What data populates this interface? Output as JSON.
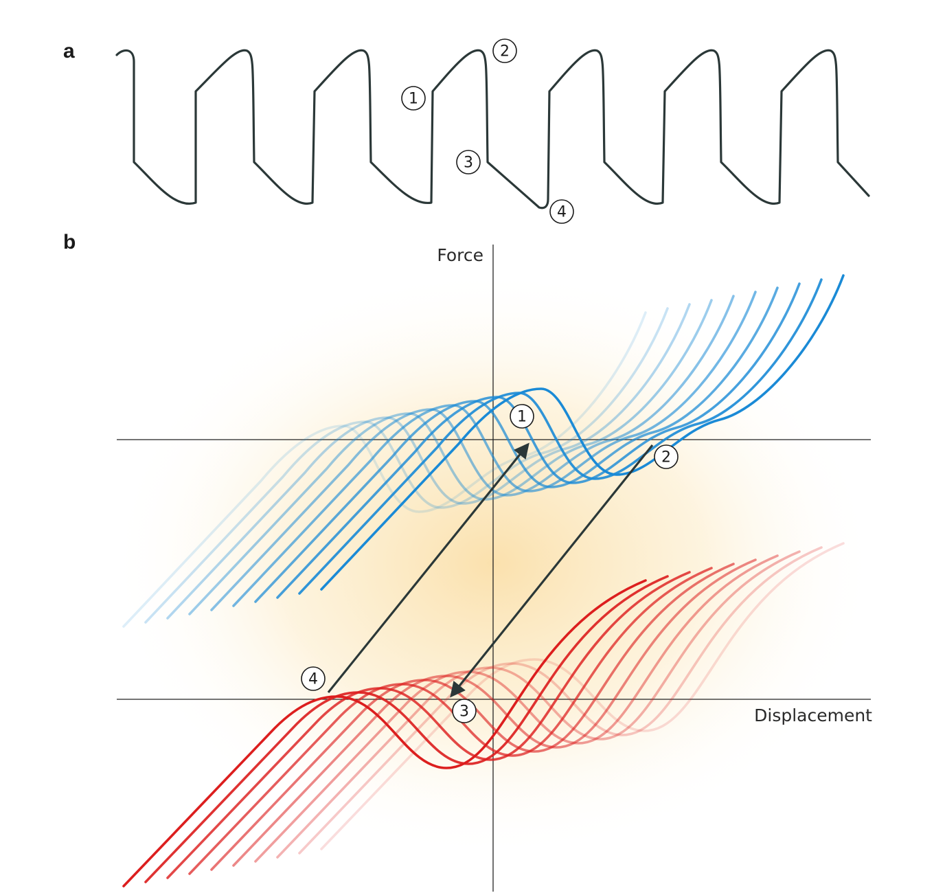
{
  "panels": {
    "a": {
      "label": "a"
    },
    "b": {
      "label": "b"
    }
  },
  "axes": {
    "y_label": "Force",
    "x_label": "Displacement"
  },
  "markers": {
    "a": [
      "1",
      "2",
      "3",
      "4"
    ],
    "b": [
      "1",
      "2",
      "3",
      "4"
    ]
  },
  "colors": {
    "trace": "#2b3838",
    "blue_family": "#1a8ad6",
    "red_family": "#dc1e1e",
    "background_glow": "#f7c86a"
  },
  "families": {
    "blue": {
      "curves": 10,
      "direction": "opening"
    },
    "red": {
      "curves": 10,
      "direction": "closing"
    }
  }
}
